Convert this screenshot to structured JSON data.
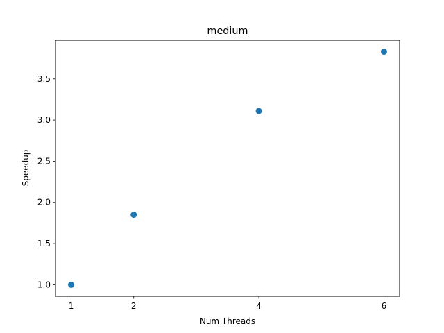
{
  "chart_data": {
    "type": "scatter",
    "title": "medium",
    "xlabel": "Num Threads",
    "ylabel": "Speedup",
    "x": [
      1,
      2,
      4,
      6
    ],
    "y": [
      1.0,
      1.85,
      3.11,
      3.83
    ],
    "xticks": [
      "1",
      "2",
      "4",
      "6"
    ],
    "yticks": [
      "1.0",
      "1.5",
      "2.0",
      "2.5",
      "3.0",
      "3.5"
    ],
    "xlim": [
      0.75,
      6.25
    ],
    "ylim": [
      0.86,
      3.97
    ],
    "grid": false,
    "marker_color": "#1f77b4"
  }
}
